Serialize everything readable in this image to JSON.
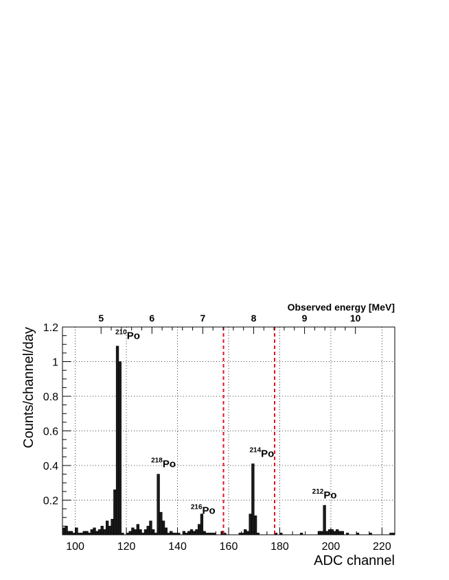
{
  "chart_data": {
    "type": "bar",
    "xlabel": "ADC channel",
    "ylabel": "Counts/channel/day",
    "top_axis_label": "Observed energy [MeV]",
    "xlim": [
      95,
      225
    ],
    "ylim": [
      0,
      1.2
    ],
    "x_ticks": [
      100,
      120,
      140,
      160,
      180,
      200,
      220
    ],
    "y_ticks": [
      0.2,
      0.4,
      0.6,
      0.8,
      1,
      1.2
    ],
    "y_tick_labels": [
      "0.2",
      "0.4",
      "0.6",
      "0.8",
      "1",
      "1.2"
    ],
    "top_ticks": [
      5,
      6,
      7,
      8,
      9,
      10
    ],
    "top_tick_adc": [
      110.1,
      130,
      149.9,
      169.8,
      189.7,
      209.6
    ],
    "grid": true,
    "cut_lines_adc": [
      158,
      178
    ],
    "cut_line_color": "#e8101a",
    "bar_color": "#1a1a1a",
    "bins_start": 95,
    "bin_width": 1,
    "values": [
      0.04,
      0.05,
      0.02,
      0.02,
      0.01,
      0.04,
      0.01,
      0.01,
      0.02,
      0.02,
      0.01,
      0.03,
      0.04,
      0.02,
      0.03,
      0.05,
      0.03,
      0.08,
      0.05,
      0.09,
      0.26,
      1.09,
      1.0,
      0.01,
      0.0,
      0.01,
      0.02,
      0.04,
      0.03,
      0.06,
      0.03,
      0.01,
      0.03,
      0.05,
      0.08,
      0.03,
      0.01,
      0.35,
      0.13,
      0.08,
      0.04,
      0.01,
      0.02,
      0.01,
      0.01,
      0.01,
      0.0,
      0.02,
      0.01,
      0.02,
      0.03,
      0.02,
      0.03,
      0.06,
      0.12,
      0.02,
      0.01,
      0.01,
      0.01,
      0.01,
      0.0,
      0.0,
      0.02,
      0.01,
      0.0,
      0.0,
      0.0,
      0.0,
      0.0,
      0.01,
      0.01,
      0.03,
      0.02,
      0.12,
      0.41,
      0.11,
      0.01,
      0.0,
      0.0,
      0.0,
      0.0,
      0.0,
      0.0,
      0.01,
      0.0,
      0.01,
      0.0,
      0.0,
      0.0,
      0.0,
      0.0,
      0.0,
      0.0,
      0.01,
      0.0,
      0.0,
      0.0,
      0.0,
      0.0,
      0.0,
      0.02,
      0.02,
      0.17,
      0.02,
      0.03,
      0.03,
      0.02,
      0.03,
      0.02,
      0.02,
      0.0,
      0.01,
      0.0,
      0.0,
      0.0,
      0.01,
      0.0,
      0.0,
      0.0,
      0.0,
      0.01,
      0.0,
      0.0,
      0.0,
      0.0,
      0.0,
      0.0,
      0.0,
      0.01,
      0.01
    ],
    "annotations": [
      {
        "mass": "210",
        "element": "Po",
        "x": 120.5,
        "y": 1.13
      },
      {
        "mass": "218",
        "element": "Po",
        "x": 134.5,
        "y": 0.39
      },
      {
        "mass": "216",
        "element": "Po",
        "x": 150,
        "y": 0.12
      },
      {
        "mass": "214",
        "element": "Po",
        "x": 173,
        "y": 0.45
      },
      {
        "mass": "212",
        "element": "Po",
        "x": 197.5,
        "y": 0.21
      }
    ]
  }
}
